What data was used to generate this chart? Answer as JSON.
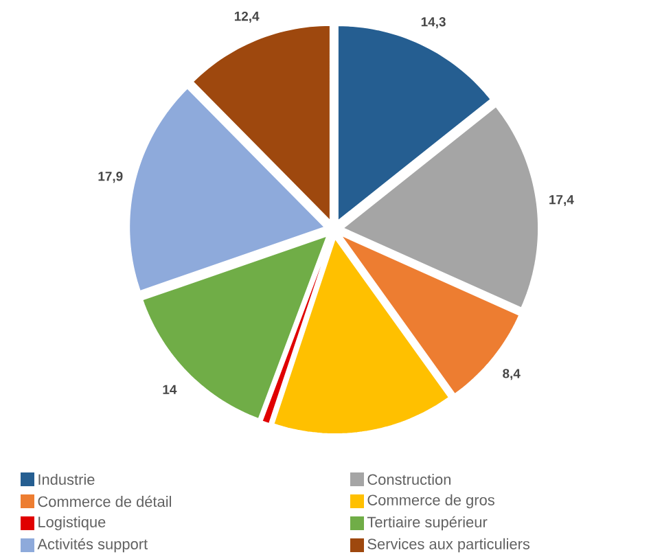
{
  "chart_data": {
    "type": "pie",
    "categories": [
      "Industrie",
      "Construction",
      "Commerce de détail",
      "Commerce de gros",
      "Logistique",
      "Tertiaire supérieur",
      "Activités support",
      "Services aux particuliers"
    ],
    "values": [
      14.3,
      17.4,
      8.4,
      15.0,
      0.6,
      14,
      17.9,
      12.4
    ],
    "value_labels": [
      "14,3",
      "17,4",
      "8,4",
      null,
      null,
      "14",
      "17,9",
      "12,4"
    ],
    "colors": [
      "#255e91",
      "#a5a5a5",
      "#ed7d31",
      "#ffc000",
      "#e00000",
      "#70ad47",
      "#8eaadb",
      "#9e480e"
    ],
    "legend": "bottom"
  }
}
